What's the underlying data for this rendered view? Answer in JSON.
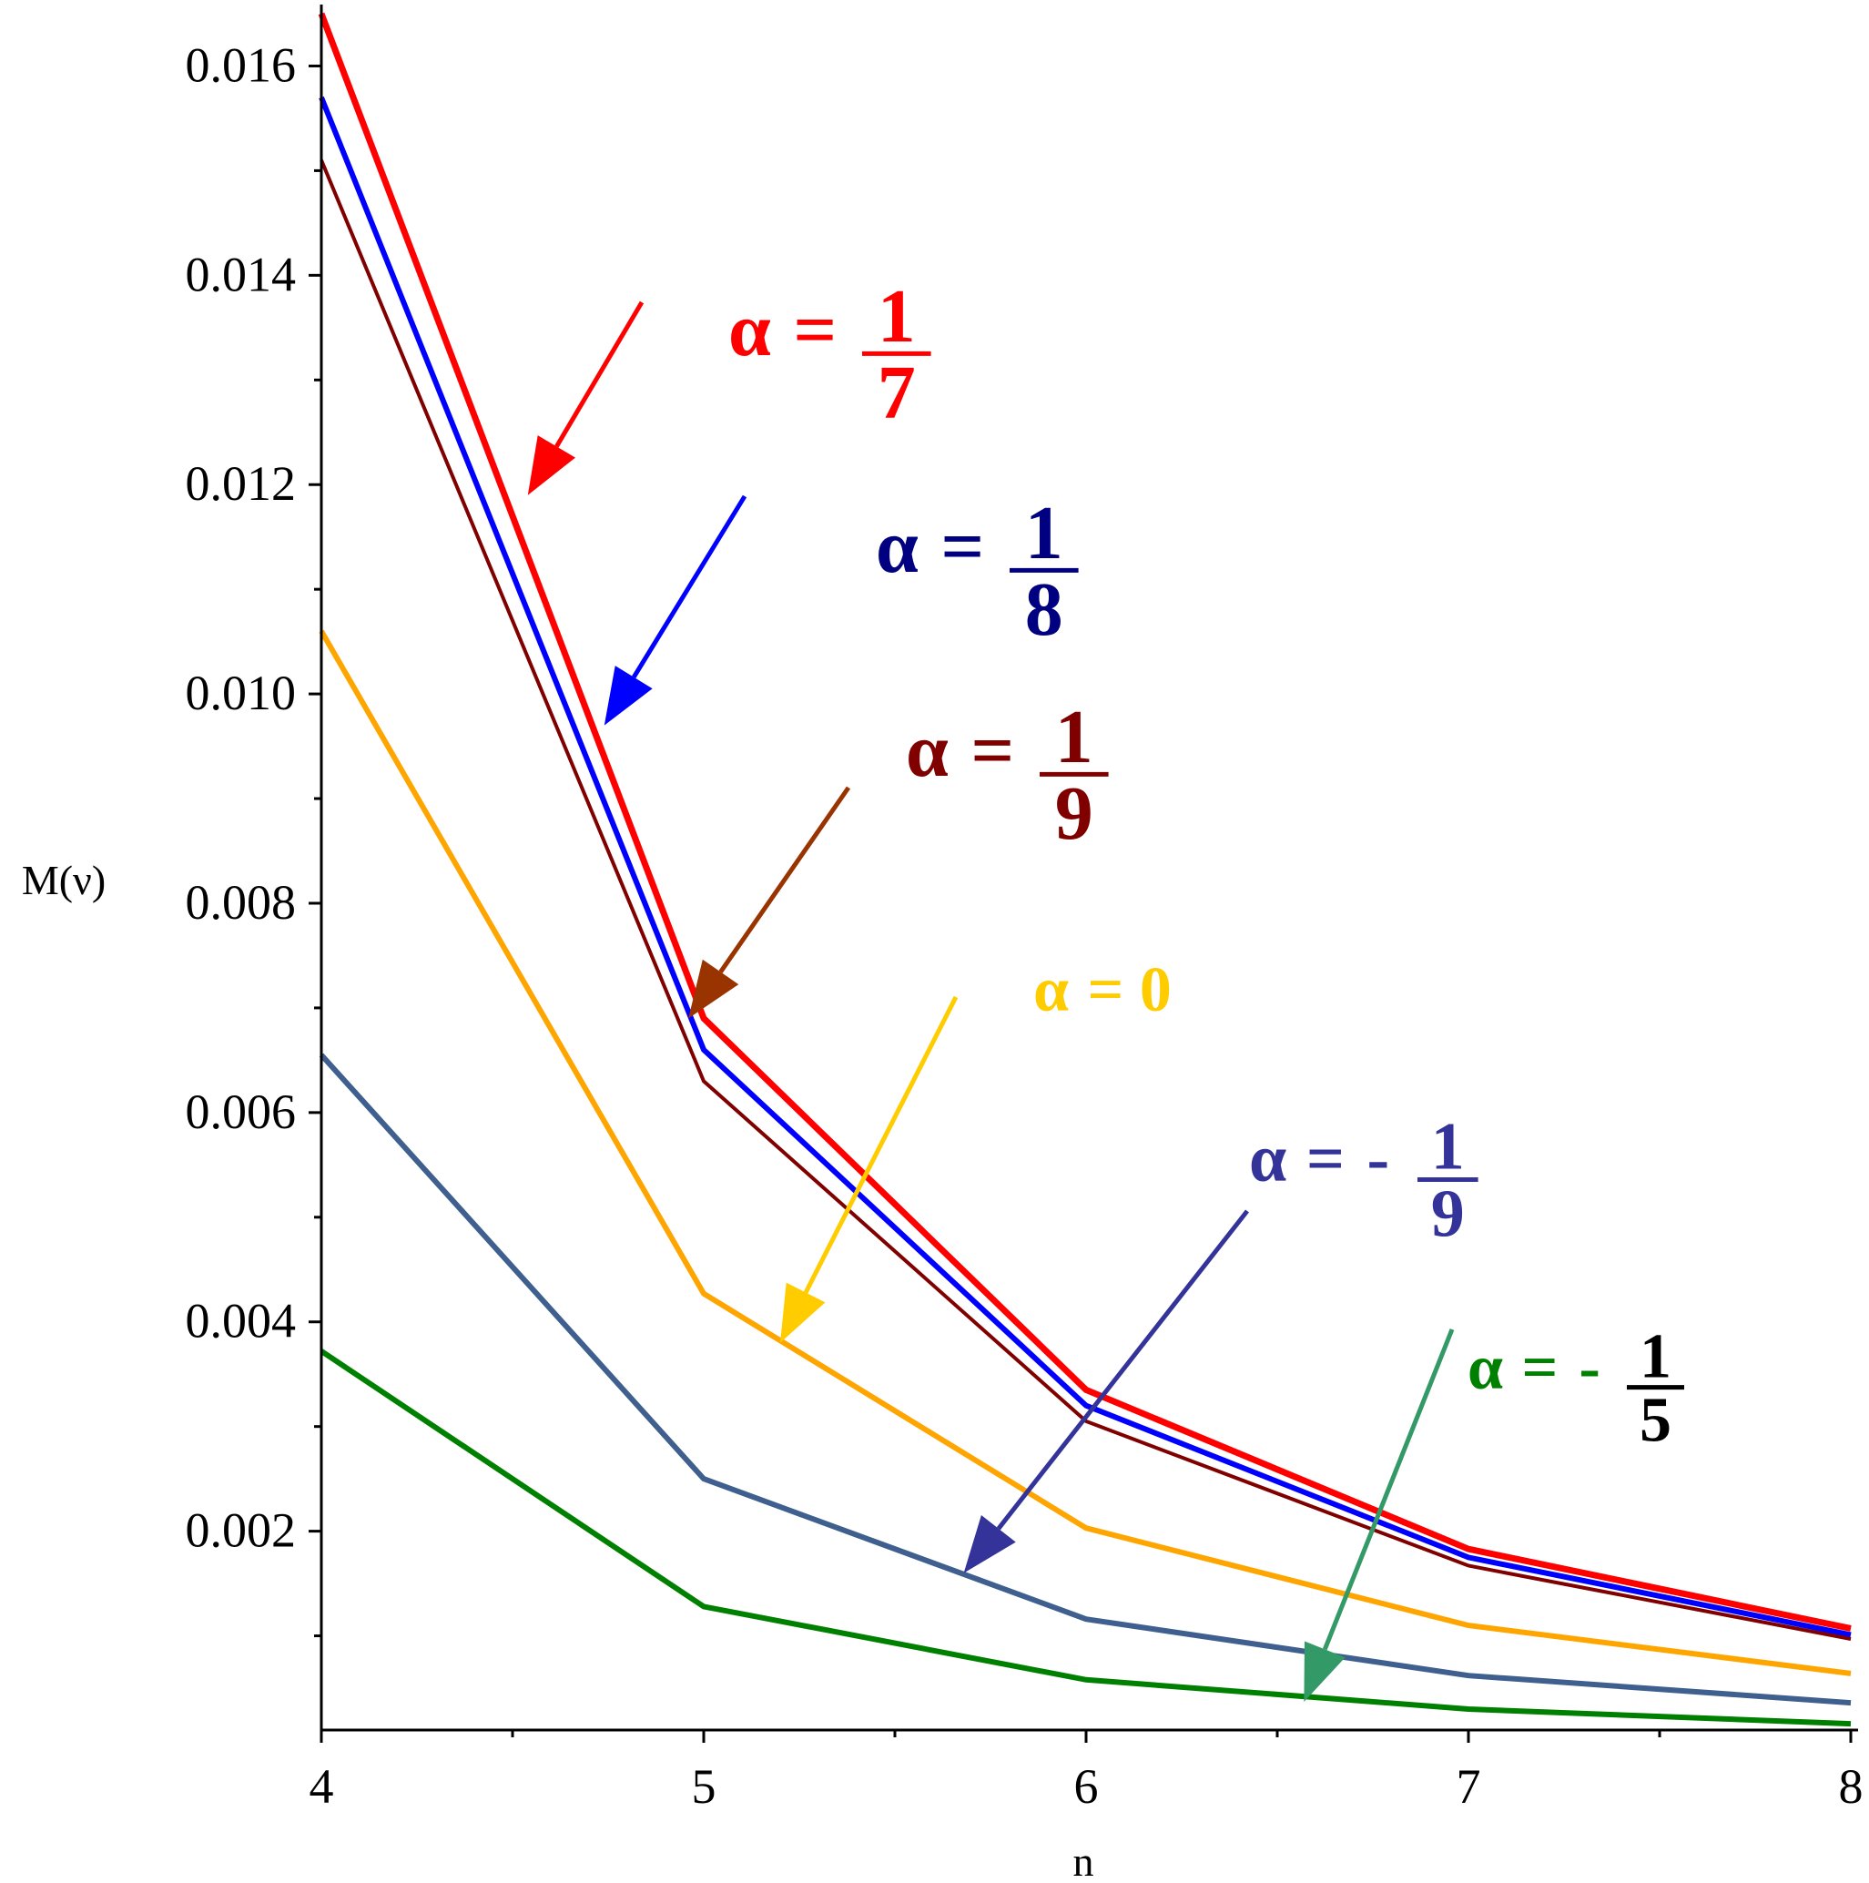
{
  "chart_data": {
    "type": "line",
    "title": "",
    "xlabel": "n",
    "ylabel": "M(ν)",
    "x": [
      4,
      5,
      6,
      7,
      8
    ],
    "xlim": [
      4,
      8
    ],
    "ylim": [
      0.0001,
      0.0165
    ],
    "x_ticks": [
      4,
      5,
      6,
      7,
      8
    ],
    "x_tick_labels": [
      "4",
      "5",
      "6",
      "7",
      "8"
    ],
    "y_ticks": [
      0.002,
      0.004,
      0.006,
      0.008,
      0.01,
      0.012,
      0.014,
      0.016
    ],
    "y_tick_labels": [
      "0.002",
      "0.004",
      "0.006",
      "0.008",
      "0.010",
      "0.012",
      "0.014",
      "0.016"
    ],
    "grid": false,
    "series": [
      {
        "name": "α = 1/7",
        "color": "#ff0000",
        "values": [
          0.0165,
          0.0069,
          0.00335,
          0.00183,
          0.00107
        ]
      },
      {
        "name": "α = 1/8",
        "color": "#0000ff",
        "values": [
          0.0157,
          0.0066,
          0.0032,
          0.00175,
          0.00101
        ]
      },
      {
        "name": "α = 1/9",
        "color": "#800000",
        "values": [
          0.0151,
          0.0063,
          0.00305,
          0.00167,
          0.00097
        ]
      },
      {
        "name": "α = 0",
        "color": "#ffa500",
        "values": [
          0.0106,
          0.00427,
          0.00203,
          0.0011,
          0.00064
        ]
      },
      {
        "name": "α = -1/9",
        "color": "#3f5f8f",
        "values": [
          0.00655,
          0.0025,
          0.00116,
          0.00062,
          0.00036
        ]
      },
      {
        "name": "α = -1/5",
        "color": "#008000",
        "values": [
          0.00372,
          0.00128,
          0.00058,
          0.0003,
          0.00016
        ]
      }
    ],
    "annotations": [
      {
        "alpha": "α",
        "eq": "=",
        "sign": "",
        "num": "1",
        "den": "7",
        "color": "#ff0000",
        "arrow_color": "#ff0000",
        "target_x": 4.54,
        "target_y": 0.0119
      },
      {
        "alpha": "α",
        "eq": "=",
        "sign": "",
        "num": "1",
        "den": "8",
        "color": "#000080",
        "arrow_color": "#0000ff",
        "target_x": 4.74,
        "target_y": 0.0097
      },
      {
        "alpha": "α",
        "eq": "=",
        "sign": "",
        "num": "1",
        "den": "9",
        "color": "#800000",
        "arrow_color": "#993300",
        "target_x": 4.96,
        "target_y": 0.0069
      },
      {
        "alpha": "α",
        "eq": "= 0",
        "sign": "",
        "num": "",
        "den": "",
        "color": "#ffcc00",
        "arrow_color": "#ffcc00",
        "target_x": 5.2,
        "target_y": 0.0038
      },
      {
        "alpha": "α",
        "eq": "=",
        "sign": "-",
        "num": "1",
        "den": "9",
        "color": "#333399",
        "arrow_color": "#333399",
        "target_x": 5.68,
        "target_y": 0.0016
      },
      {
        "alpha": "α",
        "eq": "=",
        "sign": "-",
        "num": "1",
        "den": "5",
        "color": "#008000",
        "frac_color": "#000000",
        "arrow_color": "#339966",
        "target_x": 6.57,
        "target_y": 0.00037
      }
    ]
  }
}
